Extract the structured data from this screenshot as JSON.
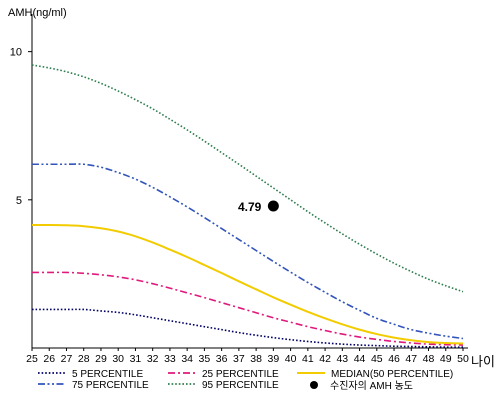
{
  "chart_data": {
    "type": "line",
    "ylabel": "AMH(ng/ml)",
    "xlabel": "나이",
    "x": [
      25,
      26,
      27,
      28,
      29,
      30,
      31,
      32,
      33,
      34,
      35,
      36,
      37,
      38,
      39,
      40,
      41,
      42,
      43,
      44,
      45,
      46,
      47,
      48,
      49,
      50
    ],
    "xlim": [
      25,
      50
    ],
    "ylim": [
      0,
      11
    ],
    "yticks": [
      5,
      10
    ],
    "series": [
      {
        "name": "5 PERCENTILE",
        "color": "#000066",
        "dash": "dotted",
        "values": [
          1.3,
          1.3,
          1.3,
          1.3,
          1.25,
          1.2,
          1.12,
          1.02,
          0.92,
          0.82,
          0.72,
          0.62,
          0.52,
          0.43,
          0.35,
          0.28,
          0.22,
          0.17,
          0.13,
          0.1,
          0.08,
          0.06,
          0.05,
          0.04,
          0.03,
          0.03
        ]
      },
      {
        "name": "25 PERCENTILE",
        "color": "#e0197d",
        "dash": "dashdot",
        "values": [
          2.55,
          2.55,
          2.55,
          2.52,
          2.47,
          2.4,
          2.3,
          2.17,
          2.02,
          1.86,
          1.7,
          1.53,
          1.36,
          1.19,
          1.02,
          0.87,
          0.72,
          0.59,
          0.47,
          0.37,
          0.29,
          0.22,
          0.17,
          0.13,
          0.11,
          0.1
        ]
      },
      {
        "name": "MEDIAN(50 PERCENTILE)",
        "color": "#f2cc00",
        "dash": "solid",
        "values": [
          4.15,
          4.15,
          4.14,
          4.11,
          4.04,
          3.93,
          3.77,
          3.56,
          3.32,
          3.07,
          2.8,
          2.53,
          2.25,
          1.98,
          1.71,
          1.46,
          1.22,
          1.0,
          0.8,
          0.62,
          0.47,
          0.35,
          0.26,
          0.2,
          0.17,
          0.15
        ]
      },
      {
        "name": "75 PERCENTILE",
        "color": "#3355bb",
        "dash": "dashdotdot",
        "values": [
          6.2,
          6.2,
          6.2,
          6.2,
          6.1,
          5.92,
          5.7,
          5.42,
          5.1,
          4.76,
          4.4,
          4.03,
          3.66,
          3.29,
          2.92,
          2.56,
          2.21,
          1.88,
          1.56,
          1.27,
          1.0,
          0.8,
          0.62,
          0.5,
          0.4,
          0.32
        ]
      },
      {
        "name": "95 PERCENTILE",
        "color": "#2e7d4f",
        "dash": "dotted",
        "values": [
          9.55,
          9.45,
          9.32,
          9.15,
          8.93,
          8.67,
          8.38,
          8.07,
          7.72,
          7.36,
          6.98,
          6.59,
          6.2,
          5.8,
          5.4,
          5.0,
          4.6,
          4.22,
          3.85,
          3.5,
          3.17,
          2.86,
          2.58,
          2.32,
          2.1,
          1.9
        ]
      }
    ],
    "marker": {
      "name": "수진자의 AMH 농도",
      "x": 39,
      "y": 4.79,
      "label": "4.79"
    }
  }
}
